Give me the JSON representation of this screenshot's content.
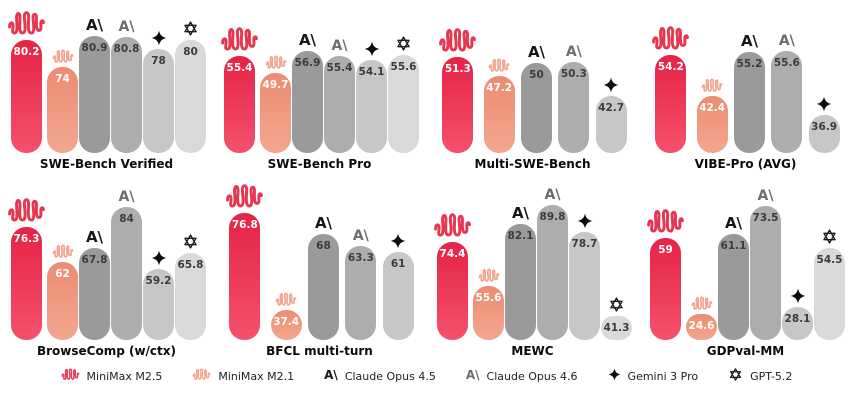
{
  "page": {
    "background": "#ffffff"
  },
  "models": [
    {
      "id": "m25",
      "label": "MiniMax M2.5",
      "icon": "minimax-m25",
      "barColorTop": "#e52347",
      "barColorBottom": "#f4516c",
      "valueColor": "#ffffff",
      "iconColor": "#e7364f"
    },
    {
      "id": "m21",
      "label": "MiniMax M2.1",
      "icon": "minimax-m21",
      "barColorTop": "#ec8c72",
      "barColorBottom": "#f2a78f",
      "valueColor": "#ffffff",
      "iconColor": "#f2a48e"
    },
    {
      "id": "opus45",
      "label": "Claude Opus 4.5",
      "icon": "anthropic-dark",
      "barColor": "#9a9a9a",
      "valueColor": "#3c3c3c",
      "iconColor": "#161616"
    },
    {
      "id": "opus46",
      "label": "Claude Opus 4.6",
      "icon": "anthropic-gray",
      "barColor": "#adadad",
      "valueColor": "#3c3c3c",
      "iconColor": "#6d6d6d"
    },
    {
      "id": "gemini",
      "label": "Gemini 3 Pro",
      "icon": "gemini-star",
      "barColor": "#c7c7c7",
      "valueColor": "#3c3c3c",
      "iconColor": "#0d0d0d"
    },
    {
      "id": "gpt",
      "label": "GPT-5.2",
      "icon": "openai",
      "barColor": "#d9d9d9",
      "valueColor": "#3c3c3c",
      "iconColor": "#1d1d1d"
    }
  ],
  "chart_data": [
    {
      "type": "bar",
      "title": "SWE-Bench Verified",
      "ylim": [
        55,
        85
      ],
      "bars": [
        {
          "model": "m25",
          "value": 80.2
        },
        {
          "model": "m21",
          "value": 74
        },
        {
          "model": "opus45",
          "value": 80.9
        },
        {
          "model": "opus46",
          "value": 80.8
        },
        {
          "model": "gemini",
          "value": 78
        },
        {
          "model": "gpt",
          "value": 80
        }
      ]
    },
    {
      "type": "bar",
      "title": "SWE-Bench Pro",
      "ylim": [
        23,
        68
      ],
      "bars": [
        {
          "model": "m25",
          "value": 55.4
        },
        {
          "model": "m21",
          "value": 49.7
        },
        {
          "model": "opus45",
          "value": 56.9
        },
        {
          "model": "opus46",
          "value": 55.4
        },
        {
          "model": "gemini",
          "value": 54.1
        },
        {
          "model": "gpt",
          "value": 55.6
        }
      ]
    },
    {
      "type": "bar",
      "title": "Multi-SWE-Bench",
      "ylim": [
        30,
        60
      ],
      "bars": [
        {
          "model": "m25",
          "value": 51.3
        },
        {
          "model": "m21",
          "value": 47.2
        },
        {
          "model": "opus45",
          "value": 50
        },
        {
          "model": "opus46",
          "value": 50.3
        },
        {
          "model": "gemini",
          "value": 42.7
        }
      ]
    },
    {
      "type": "bar",
      "title": "VIBE-Pro (AVG)",
      "ylim": [
        26,
        65
      ],
      "bars": [
        {
          "model": "m25",
          "value": 54.2
        },
        {
          "model": "m21",
          "value": 42.4
        },
        {
          "model": "opus45",
          "value": 55.2
        },
        {
          "model": "opus46",
          "value": 55.6
        },
        {
          "model": "gemini",
          "value": 36.9
        }
      ]
    },
    {
      "type": "bar",
      "title": "BrowseComp (w/ctx)",
      "ylim": [
        31,
        85
      ],
      "bars": [
        {
          "model": "m25",
          "value": 76.3
        },
        {
          "model": "m21",
          "value": 62
        },
        {
          "model": "opus45",
          "value": 67.8
        },
        {
          "model": "opus46",
          "value": 84
        },
        {
          "model": "gemini",
          "value": 59.2
        },
        {
          "model": "gpt",
          "value": 65.8
        }
      ]
    },
    {
      "type": "bar",
      "title": "BFCL multi-turn",
      "ylim": [
        25,
        80
      ],
      "bars": [
        {
          "model": "m25",
          "value": 76.8
        },
        {
          "model": "m21",
          "value": 37.4
        },
        {
          "model": "opus45",
          "value": 68
        },
        {
          "model": "opus46",
          "value": 63.3
        },
        {
          "model": "gemini",
          "value": 61
        }
      ]
    },
    {
      "type": "bar",
      "title": "MEWC",
      "ylim": [
        33,
        90
      ],
      "bars": [
        {
          "model": "m25",
          "value": 74.4
        },
        {
          "model": "m21",
          "value": 55.6
        },
        {
          "model": "opus45",
          "value": 82.1
        },
        {
          "model": "opus46",
          "value": 89.8
        },
        {
          "model": "gemini",
          "value": 78.7
        },
        {
          "model": "gpt",
          "value": 41.3
        }
      ]
    },
    {
      "type": "bar",
      "title": "GDPval-MM",
      "ylim": [
        13,
        74
      ],
      "bars": [
        {
          "model": "m25",
          "value": 59
        },
        {
          "model": "m21",
          "value": 24.6
        },
        {
          "model": "opus45",
          "value": 61.1
        },
        {
          "model": "opus46",
          "value": 73.5
        },
        {
          "model": "gemini",
          "value": 28.1
        },
        {
          "model": "gpt",
          "value": 54.5
        }
      ]
    }
  ],
  "legend": {
    "items": [
      "m25",
      "m21",
      "opus45",
      "opus46",
      "gemini",
      "gpt"
    ]
  }
}
